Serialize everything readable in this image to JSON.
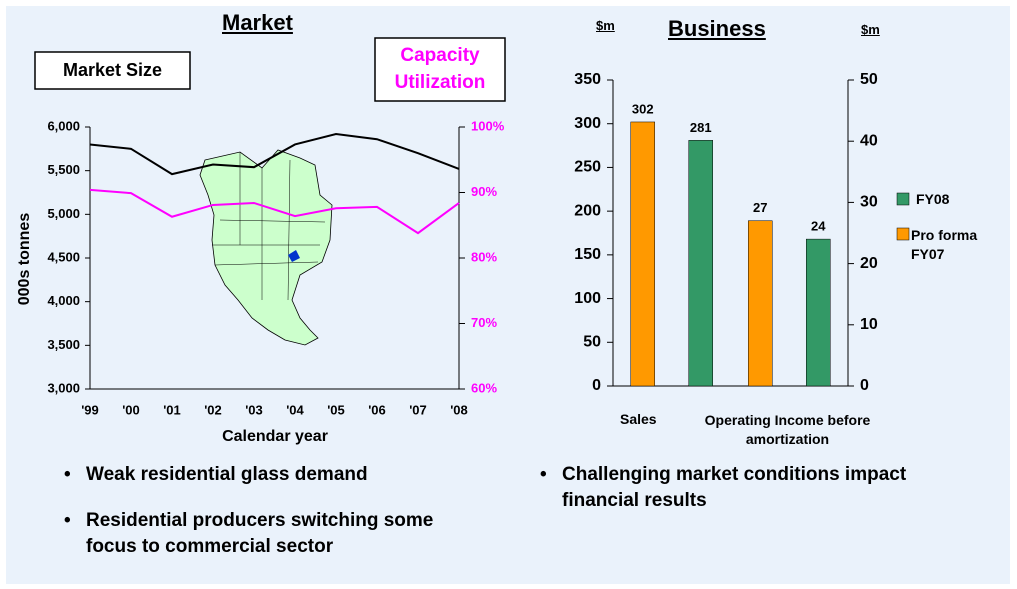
{
  "chart_data": [
    {
      "type": "line",
      "title": "Market",
      "categories": [
        "'99",
        "'00",
        "'01",
        "'02",
        "'03",
        "'04",
        "'05",
        "'06",
        "'07",
        "'08"
      ],
      "series": [
        {
          "name": "Market Size",
          "color": "#000000",
          "values": [
            5800,
            5750,
            5460,
            5570,
            5540,
            5800,
            5920,
            5860,
            5700,
            5520
          ]
        },
        {
          "name": "Capacity Utilization",
          "color": "#ff00ff",
          "axis": "y2",
          "values": [
            90.4,
            89.9,
            86.3,
            88.1,
            88.4,
            86.4,
            87.6,
            87.8,
            83.8,
            88.4
          ]
        }
      ],
      "ylabel": "000s tonnes",
      "xlabel": "Calendar year",
      "ylim": [
        3000,
        6000
      ],
      "yticks": [
        {
          "value": 3000,
          "label": "3,000"
        },
        {
          "value": 3500,
          "label": "3,500"
        },
        {
          "value": 4000,
          "label": "4,000"
        },
        {
          "value": 4500,
          "label": "4,500"
        },
        {
          "value": 5000,
          "label": "5,000"
        },
        {
          "value": 5500,
          "label": "5,500"
        },
        {
          "value": 6000,
          "label": "6,000"
        }
      ],
      "y2lim": [
        60,
        100
      ],
      "y2ticks": [
        {
          "value": 60,
          "label": "60%"
        },
        {
          "value": 70,
          "label": "70%"
        },
        {
          "value": 80,
          "label": "80%"
        },
        {
          "value": 90,
          "label": "90%"
        },
        {
          "value": 100,
          "label": "100%"
        }
      ]
    },
    {
      "type": "bar",
      "title": "Business",
      "ylabel": "$m",
      "y2label": "$m",
      "categories": [
        "Sales",
        "Operating Income before amortization"
      ],
      "category_axes": [
        "y",
        "y2"
      ],
      "series": [
        {
          "name": "Pro forma FY07",
          "color": "#ff9900",
          "values": [
            302,
            27
          ]
        },
        {
          "name": "FY08",
          "color": "#339966",
          "values": [
            281,
            24
          ]
        }
      ],
      "ylim": [
        0,
        350
      ],
      "yticks": [
        0,
        50,
        100,
        150,
        200,
        250,
        300,
        350
      ],
      "y2lim": [
        0,
        50
      ],
      "y2ticks": [
        0,
        10,
        20,
        30,
        40,
        50
      ]
    }
  ],
  "bullets_left": [
    "Weak residential glass demand",
    "Residential producers switching some focus to commercial sector"
  ],
  "bullets_right": [
    "Challenging market conditions impact financial results"
  ]
}
